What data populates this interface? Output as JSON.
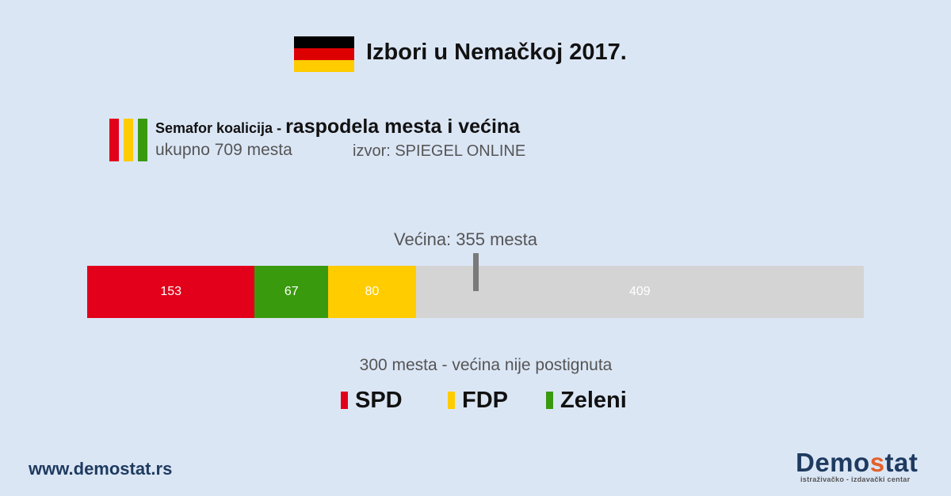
{
  "header": {
    "title": "Izbori u Nemačkoj 2017.",
    "flag_colors": [
      "#000000",
      "#dd0000",
      "#ffcc00"
    ]
  },
  "subtitle": {
    "prefix": "Semafor koalicija - ",
    "main": "raspodela mesta i većina",
    "total_seats": "ukupno 709 mesta",
    "source": "izvor: SPIEGEL ONLINE"
  },
  "chart_data": {
    "type": "bar",
    "orientation": "horizontal-stacked",
    "total": 709,
    "majority_label": "Većina: 355 mesta",
    "majority_value": 355,
    "segments": [
      {
        "name": "SPD",
        "value": 153,
        "label": "153",
        "color": "#e2001a"
      },
      {
        "name": "Zeleni",
        "value": 67,
        "label": "67",
        "color": "#3a9a0e"
      },
      {
        "name": "FDP",
        "value": 80,
        "label": "80",
        "color": "#ffcc00"
      },
      {
        "name": "",
        "value": 409,
        "label": "409",
        "color": "#d4d4d4"
      }
    ],
    "result_text": "300 mesta - većina nije postignuta",
    "legend": [
      {
        "name": "SPD",
        "color": "#e2001a"
      },
      {
        "name": "FDP",
        "color": "#ffcc00"
      },
      {
        "name": "Zeleni",
        "color": "#3a9a0e"
      }
    ]
  },
  "footer": {
    "website": "www.demostat.rs",
    "brand_a": "Demo",
    "brand_b": "s",
    "brand_c": "tat",
    "brand_tagline": "istraživačko - izdavački centar"
  }
}
